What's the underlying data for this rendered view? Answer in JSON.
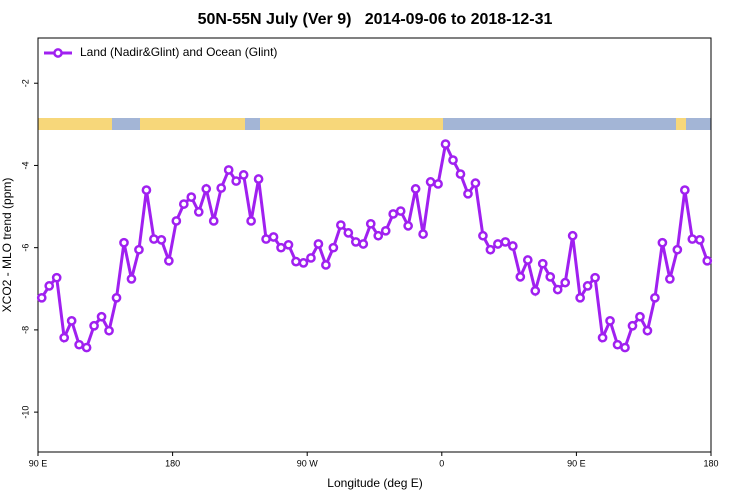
{
  "chart_data": {
    "type": "line",
    "title": "50N-55N July (Ver 9)   2014-09-06 to 2018-12-31",
    "x_label": "Longitude (deg E)",
    "y_label": "XCO2 - MLO trend (ppm)",
    "x": [
      92.5,
      97.5,
      102.5,
      107.5,
      112.5,
      117.5,
      122.5,
      127.5,
      132.5,
      137.5,
      142.5,
      147.5,
      152.5,
      157.5,
      162.5,
      167.5,
      172.5,
      177.5,
      182.5,
      187.5,
      192.5,
      197.5,
      202.5,
      207.5,
      212.5,
      217.5,
      222.5,
      227.5,
      232.5,
      237.5,
      242.5,
      247.5,
      252.5,
      257.5,
      262.5,
      267.5,
      272.5,
      277.5,
      282.5,
      287.5,
      292.5,
      297.5,
      302.5,
      307.5,
      312.5,
      317.5,
      322.5,
      327.5,
      332.5,
      337.5,
      342.5,
      347.5,
      352.5,
      357.5,
      362.5,
      367.5,
      372.5,
      377.5,
      382.5,
      387.5,
      392.5,
      397.5,
      402.5,
      407.5,
      412.5,
      417.5,
      422.5,
      427.5,
      432.5,
      437.5,
      442.5,
      447.5,
      452.5,
      457.5,
      462.5,
      467.5,
      472.5,
      477.5,
      482.5,
      487.5,
      492.5,
      497.5,
      502.5,
      507.5,
      512.5,
      517.5,
      522.5,
      527.5,
      532.5,
      537.5
    ],
    "series": [
      {
        "name": "Land (Nadir&Glint) and Ocean (Glint)",
        "color": "#a020f0",
        "values": [
          -7.22,
          -6.93,
          -6.73,
          -8.19,
          -7.78,
          -8.36,
          -8.43,
          -7.9,
          -7.68,
          -8.02,
          -7.22,
          -5.88,
          -6.76,
          -6.05,
          -4.6,
          -5.79,
          -5.81,
          -6.32,
          -5.35,
          -4.94,
          -4.77,
          -5.13,
          -4.57,
          -5.35,
          -4.55,
          -4.11,
          -4.38,
          -4.23,
          -5.35,
          -4.33,
          -5.79,
          -5.74,
          -6.0,
          -5.93,
          -6.34,
          -6.37,
          -6.25,
          -5.91,
          -6.42,
          -6.0,
          -5.45,
          -5.64,
          -5.86,
          -5.91,
          -5.42,
          -5.71,
          -5.59,
          -5.18,
          -5.11,
          -5.47,
          -4.57,
          -5.67,
          -4.4,
          -4.45,
          -3.48,
          -3.87,
          -4.21,
          -4.69,
          -4.43,
          -5.71,
          -6.05,
          -5.91,
          -5.86,
          -5.96,
          -6.71,
          -6.3,
          -7.05,
          -6.39,
          -6.71,
          -7.02,
          -6.85,
          -5.71,
          -7.22,
          -6.93,
          -6.73,
          -8.19,
          -7.78,
          -8.36,
          -8.43,
          -7.9,
          -7.68,
          -8.02,
          -7.22,
          -5.88,
          -6.76,
          -6.05,
          -4.6,
          -5.79,
          -5.81,
          -6.32
        ]
      }
    ],
    "xlim": [
      90,
      540
    ],
    "xticks": [
      {
        "value": 90,
        "label": "90 E"
      },
      180,
      {
        "value": 270,
        "label": "90 W"
      },
      {
        "value": 360,
        "label": "0"
      },
      {
        "value": 450,
        "label": "90 E"
      },
      {
        "value": 540,
        "label": "180"
      }
    ],
    "ylim": [
      -10.97,
      -0.9
    ],
    "yticks": [
      -2,
      -4,
      -6,
      -8,
      -10
    ],
    "legend": "top-left"
  }
}
